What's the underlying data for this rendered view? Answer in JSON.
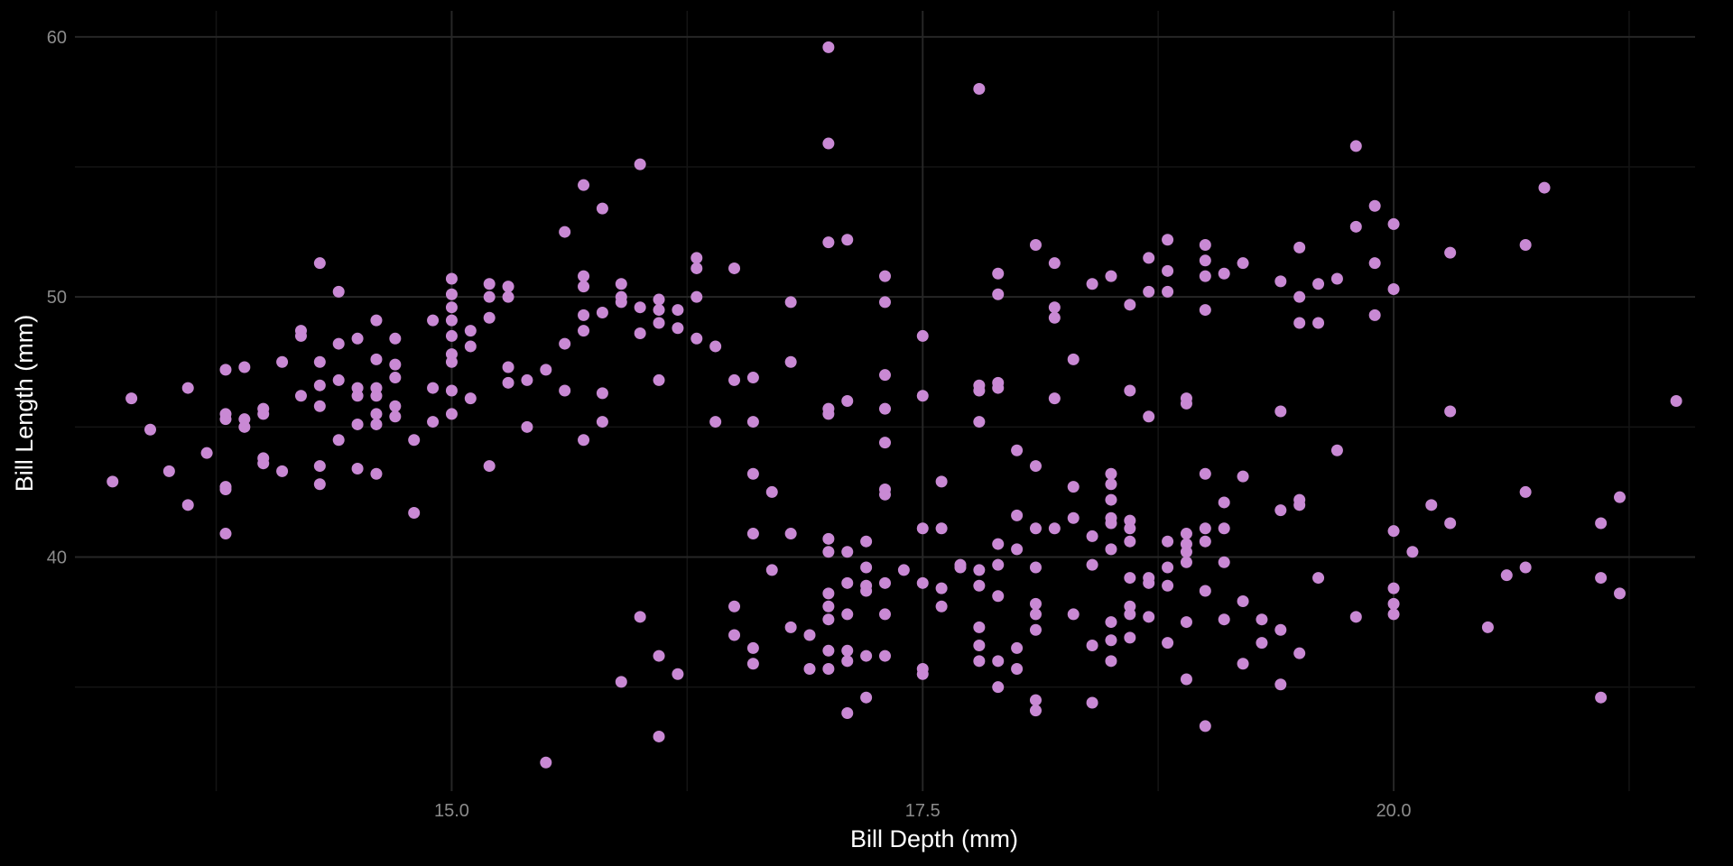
{
  "chart_data": {
    "type": "scatter",
    "title": "",
    "xlabel": "Bill Depth (mm)",
    "ylabel": "Bill Length (mm)",
    "xlim": [
      13.0,
      21.6
    ],
    "ylim": [
      31.0,
      61.0
    ],
    "x_ticks": [
      15.0,
      17.5,
      20.0
    ],
    "x_tick_labels": [
      "15.0",
      "17.5",
      "20.0"
    ],
    "x_minor_ticks": [
      13.75,
      16.25,
      18.75,
      21.25
    ],
    "y_ticks": [
      40,
      50,
      60
    ],
    "y_tick_labels": [
      "40",
      "50",
      "60"
    ],
    "y_minor_ticks": [
      35,
      45,
      55
    ],
    "grid": true,
    "legend": "none",
    "colors": {
      "background": "#000000",
      "grid_major": "#262626",
      "grid_minor": "#141414",
      "point": "#c989d4"
    },
    "points": [
      [
        13.2,
        42.9
      ],
      [
        13.3,
        46.1
      ],
      [
        13.4,
        44.9
      ],
      [
        13.5,
        43.3
      ],
      [
        13.6,
        46.5
      ],
      [
        13.6,
        42.0
      ],
      [
        13.7,
        44.0
      ],
      [
        13.8,
        47.2
      ],
      [
        13.8,
        45.3
      ],
      [
        13.8,
        45.5
      ],
      [
        13.8,
        42.6
      ],
      [
        13.8,
        42.7
      ],
      [
        13.8,
        40.9
      ],
      [
        13.9,
        47.3
      ],
      [
        13.9,
        45.3
      ],
      [
        13.9,
        45.0
      ],
      [
        14.0,
        45.5
      ],
      [
        14.0,
        45.7
      ],
      [
        14.0,
        43.6
      ],
      [
        14.0,
        43.8
      ],
      [
        14.1,
        47.5
      ],
      [
        14.1,
        43.3
      ],
      [
        14.2,
        48.5
      ],
      [
        14.2,
        48.7
      ],
      [
        14.2,
        46.2
      ],
      [
        14.3,
        51.3
      ],
      [
        14.3,
        47.5
      ],
      [
        14.3,
        46.6
      ],
      [
        14.3,
        45.8
      ],
      [
        14.3,
        43.5
      ],
      [
        14.3,
        42.8
      ],
      [
        14.4,
        50.2
      ],
      [
        14.4,
        48.2
      ],
      [
        14.4,
        46.8
      ],
      [
        14.4,
        44.5
      ],
      [
        14.5,
        48.4
      ],
      [
        14.5,
        46.5
      ],
      [
        14.5,
        46.2
      ],
      [
        14.5,
        45.1
      ],
      [
        14.5,
        43.4
      ],
      [
        14.6,
        49.1
      ],
      [
        14.6,
        47.6
      ],
      [
        14.6,
        46.5
      ],
      [
        14.6,
        46.2
      ],
      [
        14.6,
        45.5
      ],
      [
        14.6,
        45.1
      ],
      [
        14.6,
        43.2
      ],
      [
        14.7,
        48.4
      ],
      [
        14.7,
        47.4
      ],
      [
        14.7,
        46.9
      ],
      [
        14.7,
        45.8
      ],
      [
        14.7,
        45.4
      ],
      [
        14.8,
        44.5
      ],
      [
        14.8,
        41.7
      ],
      [
        14.9,
        49.1
      ],
      [
        14.9,
        46.5
      ],
      [
        14.9,
        45.2
      ],
      [
        15.0,
        50.7
      ],
      [
        15.0,
        50.1
      ],
      [
        15.0,
        49.6
      ],
      [
        15.0,
        49.1
      ],
      [
        15.0,
        48.5
      ],
      [
        15.0,
        47.8
      ],
      [
        15.0,
        47.5
      ],
      [
        15.0,
        46.4
      ],
      [
        15.0,
        45.5
      ],
      [
        15.1,
        48.7
      ],
      [
        15.1,
        48.1
      ],
      [
        15.1,
        46.1
      ],
      [
        15.2,
        50.5
      ],
      [
        15.2,
        50.0
      ],
      [
        15.2,
        49.2
      ],
      [
        15.2,
        43.5
      ],
      [
        15.3,
        50.4
      ],
      [
        15.3,
        50.0
      ],
      [
        15.3,
        47.3
      ],
      [
        15.3,
        46.7
      ],
      [
        15.4,
        46.8
      ],
      [
        15.4,
        45.0
      ],
      [
        15.5,
        47.2
      ],
      [
        15.5,
        32.1
      ],
      [
        15.6,
        52.5
      ],
      [
        15.6,
        48.2
      ],
      [
        15.6,
        46.4
      ],
      [
        15.7,
        54.3
      ],
      [
        15.7,
        50.8
      ],
      [
        15.7,
        50.4
      ],
      [
        15.7,
        49.3
      ],
      [
        15.7,
        48.7
      ],
      [
        15.7,
        44.5
      ],
      [
        15.8,
        53.4
      ],
      [
        15.8,
        49.4
      ],
      [
        15.8,
        46.3
      ],
      [
        15.8,
        45.2
      ],
      [
        15.9,
        50.5
      ],
      [
        15.9,
        50.0
      ],
      [
        15.9,
        49.8
      ],
      [
        15.9,
        35.2
      ],
      [
        16.0,
        55.1
      ],
      [
        16.0,
        49.6
      ],
      [
        16.0,
        48.6
      ],
      [
        16.0,
        37.7
      ],
      [
        16.1,
        49.9
      ],
      [
        16.1,
        49.5
      ],
      [
        16.1,
        49.0
      ],
      [
        16.1,
        46.8
      ],
      [
        16.1,
        36.2
      ],
      [
        16.1,
        33.1
      ],
      [
        16.2,
        49.5
      ],
      [
        16.2,
        48.8
      ],
      [
        16.2,
        35.5
      ],
      [
        16.3,
        51.5
      ],
      [
        16.3,
        51.1
      ],
      [
        16.3,
        50.0
      ],
      [
        16.3,
        48.4
      ],
      [
        16.4,
        48.1
      ],
      [
        16.4,
        45.2
      ],
      [
        16.5,
        51.1
      ],
      [
        16.5,
        46.8
      ],
      [
        16.5,
        38.1
      ],
      [
        16.5,
        37.0
      ],
      [
        16.6,
        46.9
      ],
      [
        16.6,
        45.2
      ],
      [
        16.6,
        43.2
      ],
      [
        16.6,
        40.9
      ],
      [
        16.6,
        36.5
      ],
      [
        16.6,
        35.9
      ],
      [
        16.7,
        42.5
      ],
      [
        16.7,
        39.5
      ],
      [
        16.8,
        49.8
      ],
      [
        16.8,
        47.5
      ],
      [
        16.8,
        40.9
      ],
      [
        16.8,
        37.3
      ],
      [
        16.9,
        37.0
      ],
      [
        16.9,
        35.7
      ],
      [
        17.0,
        59.6
      ],
      [
        17.0,
        55.9
      ],
      [
        17.0,
        52.1
      ],
      [
        17.0,
        45.7
      ],
      [
        17.0,
        45.5
      ],
      [
        17.0,
        40.7
      ],
      [
        17.0,
        40.2
      ],
      [
        17.0,
        38.6
      ],
      [
        17.0,
        38.1
      ],
      [
        17.0,
        37.6
      ],
      [
        17.0,
        36.4
      ],
      [
        17.0,
        35.7
      ],
      [
        17.1,
        52.2
      ],
      [
        17.1,
        46.0
      ],
      [
        17.1,
        40.2
      ],
      [
        17.1,
        39.0
      ],
      [
        17.1,
        37.8
      ],
      [
        17.1,
        36.4
      ],
      [
        17.1,
        36.0
      ],
      [
        17.1,
        34.0
      ],
      [
        17.2,
        40.6
      ],
      [
        17.2,
        39.6
      ],
      [
        17.2,
        38.9
      ],
      [
        17.2,
        38.7
      ],
      [
        17.2,
        36.2
      ],
      [
        17.2,
        34.6
      ],
      [
        17.3,
        50.8
      ],
      [
        17.3,
        49.8
      ],
      [
        17.3,
        47.0
      ],
      [
        17.3,
        45.7
      ],
      [
        17.3,
        44.4
      ],
      [
        17.3,
        42.6
      ],
      [
        17.3,
        42.4
      ],
      [
        17.3,
        39.0
      ],
      [
        17.3,
        37.8
      ],
      [
        17.3,
        36.2
      ],
      [
        17.4,
        39.5
      ],
      [
        17.5,
        48.5
      ],
      [
        17.5,
        46.2
      ],
      [
        17.5,
        41.1
      ],
      [
        17.5,
        39.0
      ],
      [
        17.5,
        35.7
      ],
      [
        17.5,
        35.5
      ],
      [
        17.6,
        42.9
      ],
      [
        17.6,
        41.1
      ],
      [
        17.6,
        38.8
      ],
      [
        17.6,
        38.1
      ],
      [
        17.7,
        39.7
      ],
      [
        17.7,
        39.6
      ],
      [
        17.8,
        58.0
      ],
      [
        17.8,
        46.6
      ],
      [
        17.8,
        46.4
      ],
      [
        17.8,
        45.2
      ],
      [
        17.8,
        39.5
      ],
      [
        17.8,
        38.9
      ],
      [
        17.8,
        37.3
      ],
      [
        17.8,
        36.6
      ],
      [
        17.8,
        36.0
      ],
      [
        17.9,
        50.9
      ],
      [
        17.9,
        50.1
      ],
      [
        17.9,
        46.7
      ],
      [
        17.9,
        46.5
      ],
      [
        17.9,
        40.5
      ],
      [
        17.9,
        39.7
      ],
      [
        17.9,
        38.5
      ],
      [
        17.9,
        36.0
      ],
      [
        17.9,
        35.0
      ],
      [
        18.0,
        44.1
      ],
      [
        18.0,
        41.6
      ],
      [
        18.0,
        40.3
      ],
      [
        18.0,
        36.5
      ],
      [
        18.0,
        35.7
      ],
      [
        18.1,
        52.0
      ],
      [
        18.1,
        43.5
      ],
      [
        18.1,
        41.1
      ],
      [
        18.1,
        39.6
      ],
      [
        18.1,
        38.2
      ],
      [
        18.1,
        37.8
      ],
      [
        18.1,
        37.2
      ],
      [
        18.1,
        34.5
      ],
      [
        18.1,
        34.1
      ],
      [
        18.2,
        51.3
      ],
      [
        18.2,
        49.6
      ],
      [
        18.2,
        49.2
      ],
      [
        18.2,
        46.1
      ],
      [
        18.2,
        41.1
      ],
      [
        18.3,
        47.6
      ],
      [
        18.3,
        42.7
      ],
      [
        18.3,
        41.5
      ],
      [
        18.3,
        37.8
      ],
      [
        18.4,
        50.5
      ],
      [
        18.4,
        40.8
      ],
      [
        18.4,
        39.7
      ],
      [
        18.4,
        36.6
      ],
      [
        18.4,
        34.4
      ],
      [
        18.5,
        50.8
      ],
      [
        18.5,
        43.2
      ],
      [
        18.5,
        42.8
      ],
      [
        18.5,
        42.2
      ],
      [
        18.5,
        41.5
      ],
      [
        18.5,
        41.3
      ],
      [
        18.5,
        40.3
      ],
      [
        18.5,
        37.5
      ],
      [
        18.5,
        36.8
      ],
      [
        18.5,
        36.0
      ],
      [
        18.6,
        49.7
      ],
      [
        18.6,
        46.4
      ],
      [
        18.6,
        41.4
      ],
      [
        18.6,
        41.1
      ],
      [
        18.6,
        40.6
      ],
      [
        18.6,
        39.2
      ],
      [
        18.6,
        38.1
      ],
      [
        18.6,
        37.8
      ],
      [
        18.6,
        36.9
      ],
      [
        18.7,
        51.5
      ],
      [
        18.7,
        50.2
      ],
      [
        18.7,
        45.4
      ],
      [
        18.7,
        39.2
      ],
      [
        18.7,
        39.0
      ],
      [
        18.7,
        37.7
      ],
      [
        18.8,
        52.2
      ],
      [
        18.8,
        51.0
      ],
      [
        18.8,
        50.2
      ],
      [
        18.8,
        40.6
      ],
      [
        18.8,
        39.6
      ],
      [
        18.8,
        38.9
      ],
      [
        18.8,
        36.7
      ],
      [
        18.9,
        46.1
      ],
      [
        18.9,
        45.9
      ],
      [
        18.9,
        40.9
      ],
      [
        18.9,
        40.5
      ],
      [
        18.9,
        40.2
      ],
      [
        18.9,
        39.8
      ],
      [
        18.9,
        37.5
      ],
      [
        18.9,
        35.3
      ],
      [
        19.0,
        52.0
      ],
      [
        19.0,
        51.4
      ],
      [
        19.0,
        50.8
      ],
      [
        19.0,
        49.5
      ],
      [
        19.0,
        43.2
      ],
      [
        19.0,
        41.1
      ],
      [
        19.0,
        40.6
      ],
      [
        19.0,
        38.7
      ],
      [
        19.0,
        33.5
      ],
      [
        19.1,
        50.9
      ],
      [
        19.1,
        42.1
      ],
      [
        19.1,
        41.1
      ],
      [
        19.1,
        39.8
      ],
      [
        19.1,
        37.6
      ],
      [
        19.2,
        51.3
      ],
      [
        19.2,
        43.1
      ],
      [
        19.2,
        38.3
      ],
      [
        19.2,
        35.9
      ],
      [
        19.3,
        37.6
      ],
      [
        19.3,
        36.7
      ],
      [
        19.4,
        50.6
      ],
      [
        19.4,
        45.6
      ],
      [
        19.4,
        41.8
      ],
      [
        19.4,
        37.2
      ],
      [
        19.4,
        35.1
      ],
      [
        19.5,
        51.9
      ],
      [
        19.5,
        50.0
      ],
      [
        19.5,
        49.0
      ],
      [
        19.5,
        42.2
      ],
      [
        19.5,
        42.0
      ],
      [
        19.5,
        36.3
      ],
      [
        19.6,
        50.5
      ],
      [
        19.6,
        49.0
      ],
      [
        19.6,
        39.2
      ],
      [
        19.7,
        50.7
      ],
      [
        19.7,
        44.1
      ],
      [
        19.8,
        55.8
      ],
      [
        19.8,
        52.7
      ],
      [
        19.8,
        37.7
      ],
      [
        19.9,
        53.5
      ],
      [
        19.9,
        51.3
      ],
      [
        19.9,
        49.3
      ],
      [
        20.0,
        52.8
      ],
      [
        20.0,
        50.3
      ],
      [
        20.0,
        41.0
      ],
      [
        20.0,
        38.8
      ],
      [
        20.0,
        38.2
      ],
      [
        20.0,
        37.8
      ],
      [
        20.1,
        40.2
      ],
      [
        20.2,
        42.0
      ],
      [
        20.3,
        51.7
      ],
      [
        20.3,
        45.6
      ],
      [
        20.3,
        41.3
      ],
      [
        20.5,
        37.3
      ],
      [
        20.6,
        39.3
      ],
      [
        20.7,
        52.0
      ],
      [
        20.7,
        42.5
      ],
      [
        20.7,
        39.6
      ],
      [
        20.8,
        54.2
      ],
      [
        21.1,
        41.3
      ],
      [
        21.1,
        39.2
      ],
      [
        21.1,
        34.6
      ],
      [
        21.2,
        42.3
      ],
      [
        21.2,
        38.6
      ],
      [
        21.5,
        46.0
      ]
    ]
  }
}
